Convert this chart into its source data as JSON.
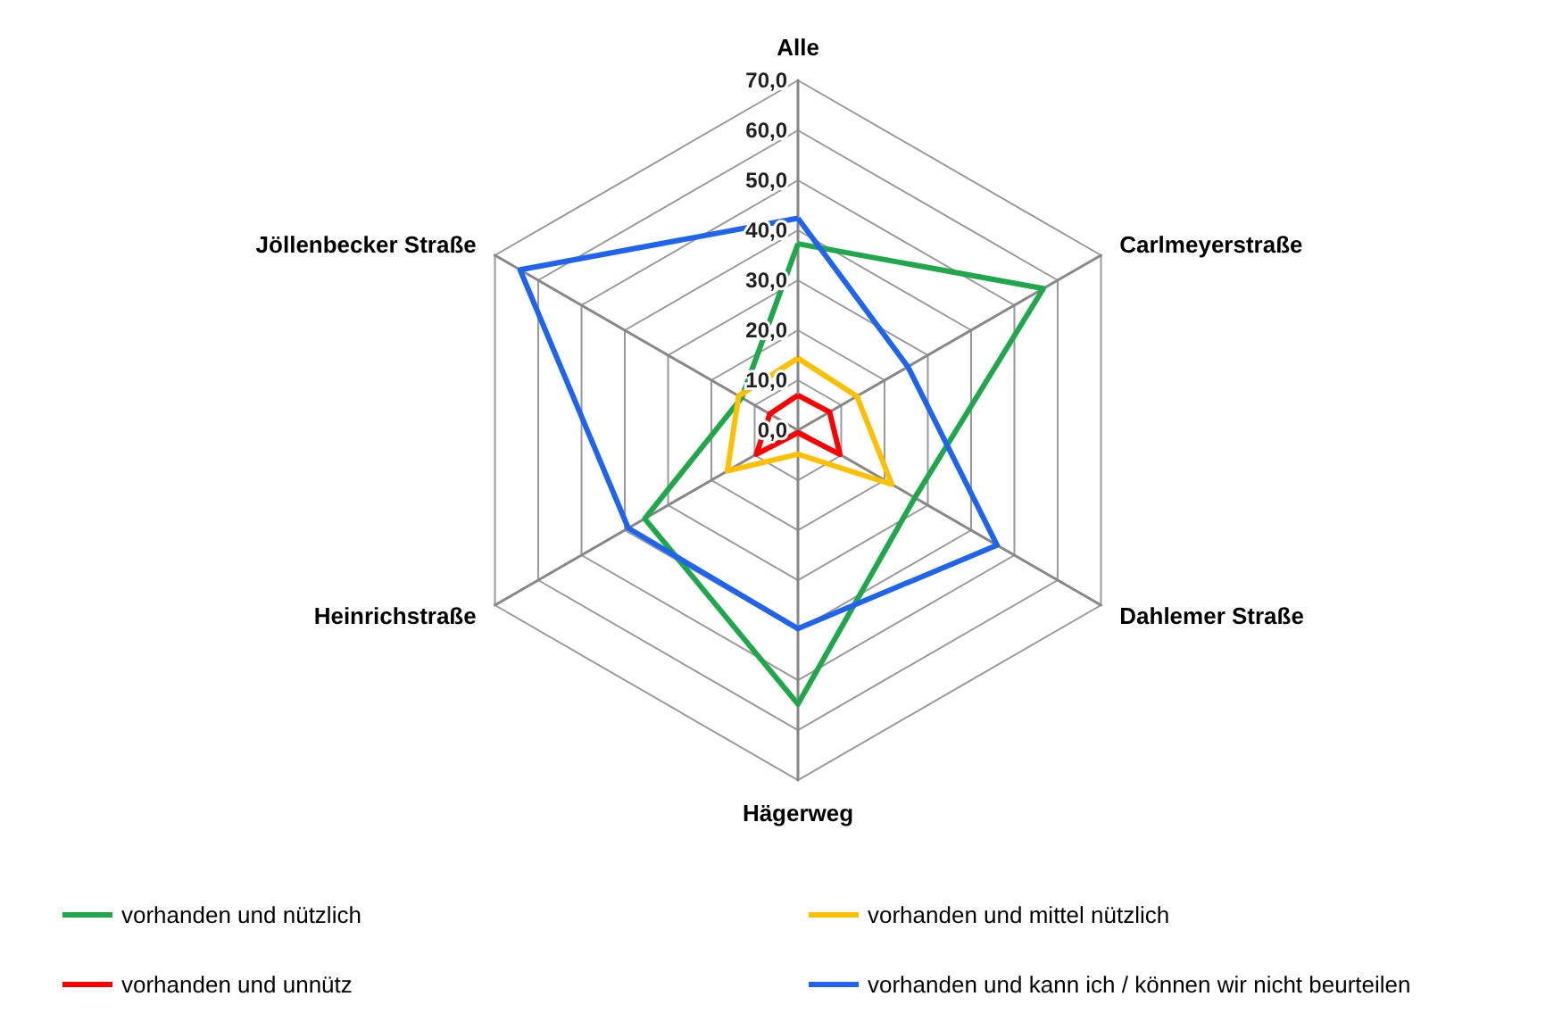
{
  "chart_data": {
    "type": "radar",
    "categories": [
      "Alle",
      "Carlmeyerstraße",
      "Dahlemer Straße",
      "Hägerweg",
      "Heinrichstraße",
      "Jöllenbecker Straße"
    ],
    "series": [
      {
        "name": "vorhanden und nützlich",
        "color": "#1ea84b",
        "values": [
          37.3,
          56.7,
          27,
          54.8,
          35.4,
          13
        ]
      },
      {
        "name": "vorhanden und mittel nützlich",
        "color": "#ffc000",
        "values": [
          14.4,
          13.6,
          21.7,
          4.8,
          16.3,
          13.7
        ]
      },
      {
        "name": "vorhanden und unnütz",
        "color": "#ff0000",
        "values": [
          7,
          7.3,
          9.7,
          0.5,
          9.6,
          6.5
        ]
      },
      {
        "name": "vorhanden und kann ich / können wir nicht beurteilen",
        "color": "#1f64f0",
        "values": [
          42.4,
          25.4,
          46,
          39.7,
          39.2,
          64.2
        ]
      }
    ],
    "ylim": [
      0,
      70
    ],
    "yticks": [
      {
        "value": 0,
        "label": "0,0"
      },
      {
        "value": 10,
        "label": "10,0"
      },
      {
        "value": 20,
        "label": "20,0"
      },
      {
        "value": 30,
        "label": "30,0"
      },
      {
        "value": 40,
        "label": "40,0"
      },
      {
        "value": 50,
        "label": "50,0"
      },
      {
        "value": 60,
        "label": "60,0"
      },
      {
        "value": 70,
        "label": "70,0"
      }
    ],
    "legend": "bottom"
  }
}
